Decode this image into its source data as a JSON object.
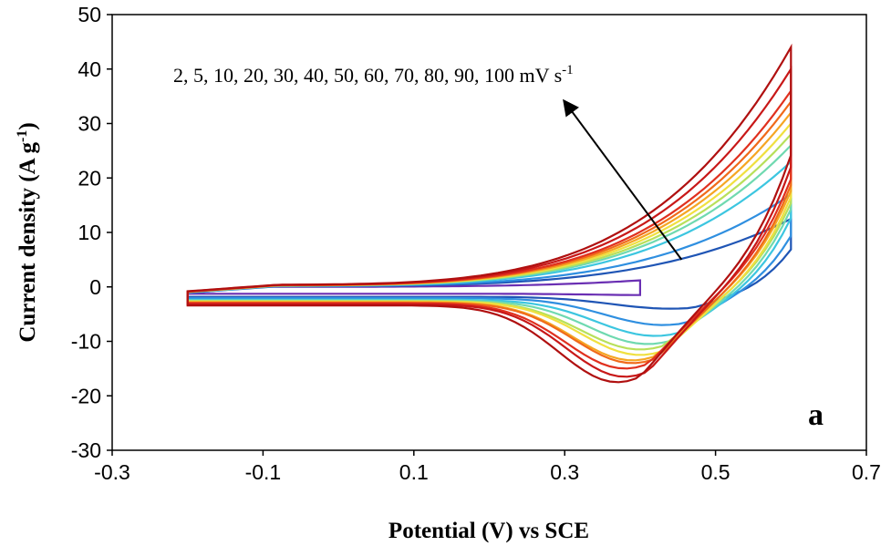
{
  "chart_data": {
    "type": "line",
    "title": "",
    "xlabel": "Potential (V) vs SCE",
    "ylabel_main": "Current density (A g",
    "ylabel_sup": "-1",
    "ylabel_end": ")",
    "xlim": [
      -0.3,
      0.7
    ],
    "ylim": [
      -30,
      50
    ],
    "xticks": [
      -0.3,
      -0.1,
      0.1,
      0.3,
      0.5,
      0.7
    ],
    "xtick_labels": [
      "-0.3",
      "-0.1",
      "0.1",
      "0.3",
      "0.5",
      "0.7"
    ],
    "yticks": [
      -30,
      -20,
      -10,
      0,
      10,
      20,
      30,
      40,
      50
    ],
    "ytick_labels": [
      "-30",
      "-20",
      "-10",
      "0",
      "10",
      "20",
      "30",
      "40",
      "50"
    ],
    "grid": false,
    "legend": "none",
    "annotation": {
      "text_main": "2, 5, 10, 20, 30, 40, 50, 60, 70, 80, 90, 100 mV s",
      "text_sup": "-1",
      "arrow_from": [
        0.455,
        5
      ],
      "arrow_to": [
        0.3,
        34
      ]
    },
    "panel_label": "a",
    "series": [
      {
        "scan_rate": 2,
        "color": "#6a2fb3",
        "v_upper": 0.4,
        "i_max": 1.2,
        "x_knee": 0.44,
        "i_min": -1.5
      },
      {
        "scan_rate": 5,
        "color": "#1f55b5",
        "v_upper": 0.6,
        "i_max": 12.5,
        "x_knee": 0.47,
        "i_min": -4.0
      },
      {
        "scan_rate": 10,
        "color": "#2f8fe0",
        "v_upper": 0.6,
        "i_max": 17.0,
        "x_knee": 0.46,
        "i_min": -7.0
      },
      {
        "scan_rate": 20,
        "color": "#3cc6e0",
        "v_upper": 0.6,
        "i_max": 23.0,
        "x_knee": 0.45,
        "i_min": -9.0
      },
      {
        "scan_rate": 30,
        "color": "#6fd9b0",
        "v_upper": 0.6,
        "i_max": 26.0,
        "x_knee": 0.44,
        "i_min": -10.5
      },
      {
        "scan_rate": 40,
        "color": "#b8e05a",
        "v_upper": 0.6,
        "i_max": 28.0,
        "x_knee": 0.43,
        "i_min": -11.5
      },
      {
        "scan_rate": 50,
        "color": "#f0e040",
        "v_upper": 0.6,
        "i_max": 30.0,
        "x_knee": 0.43,
        "i_min": -12.5
      },
      {
        "scan_rate": 60,
        "color": "#f5a623",
        "v_upper": 0.6,
        "i_max": 32.0,
        "x_knee": 0.42,
        "i_min": -13.5
      },
      {
        "scan_rate": 70,
        "color": "#f06a1a",
        "v_upper": 0.6,
        "i_max": 34.0,
        "x_knee": 0.42,
        "i_min": -14.0
      },
      {
        "scan_rate": 80,
        "color": "#e0301e",
        "v_upper": 0.6,
        "i_max": 36.0,
        "x_knee": 0.41,
        "i_min": -15.0
      },
      {
        "scan_rate": 90,
        "color": "#c81818",
        "v_upper": 0.6,
        "i_max": 40.0,
        "x_knee": 0.41,
        "i_min": -16.5
      },
      {
        "scan_rate": 100,
        "color": "#b01010",
        "v_upper": 0.6,
        "i_max": 44.0,
        "x_knee": 0.4,
        "i_min": -17.5
      }
    ]
  }
}
